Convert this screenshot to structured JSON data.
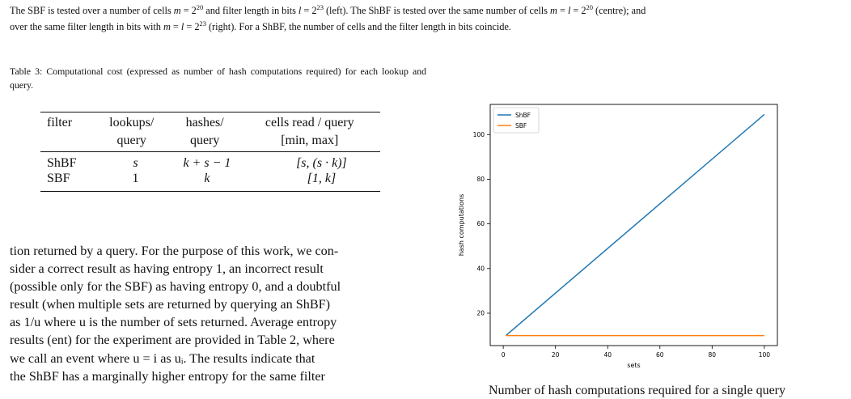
{
  "top_caption": {
    "prefix": "The SBF is tested over a number of cells ",
    "m1": "m",
    "eq_cells": " = 2",
    "exp_cells": "20",
    "mid1": " and filter length in bits ",
    "l1": "l",
    "eq_bits": " = 2",
    "exp_bits": "23",
    "mid2": " (left). The ShBF is tested over the same number of cells ",
    "m2": "m",
    "eq2": " = ",
    "l2": "l",
    "eq2b": " = 2",
    "exp2": "20",
    "mid3": " (centre); and",
    "line2a": "over the same filter length in bits with ",
    "m3": "m",
    "eq3": " = ",
    "l3": "l",
    "eq3b": " = 2",
    "exp3": "23",
    "line2b": " (right). For a ShBF, the number of cells and the filter length in bits coincide."
  },
  "table_caption": "Table 3: Computational cost (expressed as number of hash computations required) for each lookup and query.",
  "table": {
    "headers_row1": [
      "filter",
      "lookups/",
      "hashes/",
      "cells read / query"
    ],
    "headers_row2": [
      "",
      "query",
      "query",
      "[min, max]"
    ],
    "rows": [
      [
        "ShBF",
        "s",
        "k + s − 1",
        "[s, (s · k)]"
      ],
      [
        "SBF",
        "1",
        "k",
        "[1, k]"
      ]
    ]
  },
  "body_lines": [
    "tion returned by a query. For the purpose of this work, we con-",
    "sider a correct result as having entropy 1, an incorrect result",
    "(possible only for the SBF) as having entropy 0, and a doubtful",
    "result (when multiple sets are returned by querying an ShBF)",
    "as 1/u where u is the number of sets returned. Average entropy",
    "results (ent) for the experiment are provided in Table 2, where",
    "we call an event where u = i as uᵢ. The results indicate that",
    "the ShBF has a marginally higher entropy for the same filter"
  ],
  "figure_caption": "Number of hash computations required for a single query",
  "chart_data": {
    "type": "line",
    "title": "",
    "xlabel": "sets",
    "ylabel": "hash computations",
    "xlim": [
      -5,
      105
    ],
    "ylim": [
      5.5,
      113.5
    ],
    "xticks": [
      0,
      20,
      40,
      60,
      80,
      100
    ],
    "yticks": [
      20,
      40,
      60,
      80,
      100
    ],
    "legend_position": "top-left",
    "grid": false,
    "series": [
      {
        "name": "ShBF",
        "color": "#1f77b4",
        "x": [
          1,
          100
        ],
        "y": [
          10,
          109
        ]
      },
      {
        "name": "SBF",
        "color": "#ff7f0e",
        "x": [
          1,
          100
        ],
        "y": [
          10,
          10
        ]
      }
    ]
  }
}
